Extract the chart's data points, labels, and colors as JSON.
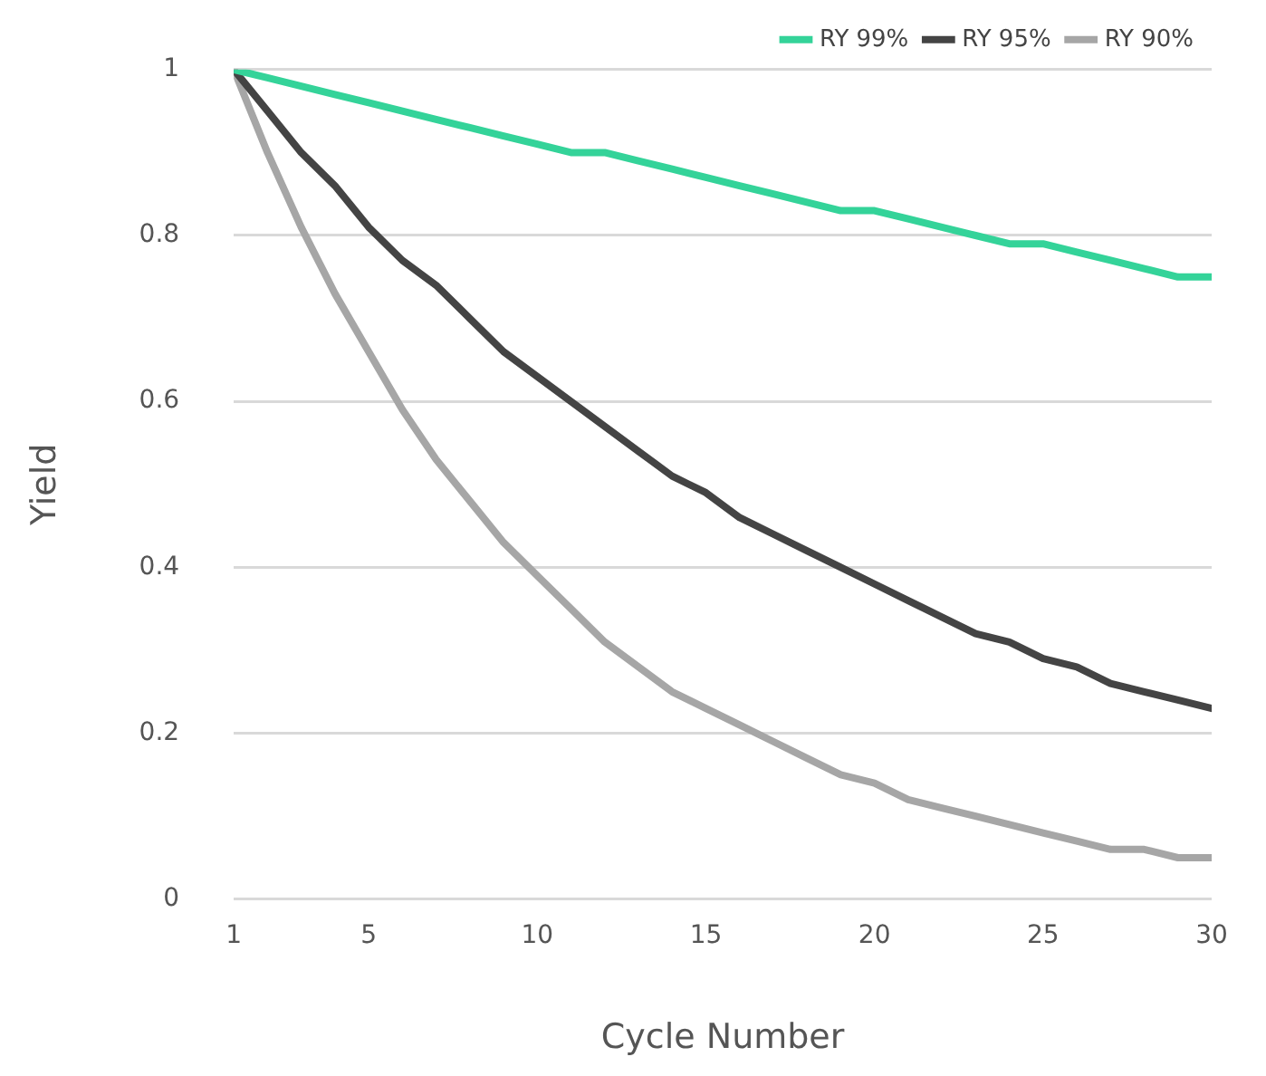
{
  "chart_data": {
    "type": "line",
    "xlabel": "Cycle Number",
    "ylabel": "Yield",
    "x": [
      1,
      2,
      3,
      4,
      5,
      6,
      7,
      8,
      9,
      10,
      11,
      12,
      13,
      14,
      15,
      16,
      17,
      18,
      19,
      20,
      21,
      22,
      23,
      24,
      25,
      26,
      27,
      28,
      29,
      30
    ],
    "xlim": [
      1,
      30
    ],
    "xticks": [
      1,
      5,
      10,
      15,
      20,
      25,
      30
    ],
    "ylim": [
      0,
      1
    ],
    "yticks": [
      0,
      0.2,
      0.4,
      0.6,
      0.8,
      1
    ],
    "grid": "y",
    "legend": "top right",
    "marker": "none",
    "line_style": "solid",
    "series": [
      {
        "name": "RY 99%",
        "color": "#34d399",
        "values": [
          1,
          0.99,
          0.98,
          0.97,
          0.96,
          0.95,
          0.94,
          0.93,
          0.92,
          0.91,
          0.9,
          0.9,
          0.89,
          0.88,
          0.87,
          0.86,
          0.85,
          0.84,
          0.83,
          0.83,
          0.82,
          0.81,
          0.8,
          0.79,
          0.79,
          0.78,
          0.77,
          0.76,
          0.75,
          0.75
        ]
      },
      {
        "name": "RY 95%",
        "color": "#444444",
        "values": [
          1,
          0.95,
          0.9,
          0.86,
          0.81,
          0.77,
          0.74,
          0.7,
          0.66,
          0.63,
          0.6,
          0.57,
          0.54,
          0.51,
          0.49,
          0.46,
          0.44,
          0.42,
          0.4,
          0.38,
          0.36,
          0.34,
          0.32,
          0.31,
          0.29,
          0.28,
          0.26,
          0.25,
          0.24,
          0.23
        ]
      },
      {
        "name": "RY 90%",
        "color": "#a6a6a6",
        "values": [
          1,
          0.9,
          0.81,
          0.73,
          0.66,
          0.59,
          0.53,
          0.48,
          0.43,
          0.39,
          0.35,
          0.31,
          0.28,
          0.25,
          0.23,
          0.21,
          0.19,
          0.17,
          0.15,
          0.14,
          0.12,
          0.11,
          0.1,
          0.09,
          0.08,
          0.07,
          0.06,
          0.06,
          0.05,
          0.05
        ]
      }
    ]
  }
}
